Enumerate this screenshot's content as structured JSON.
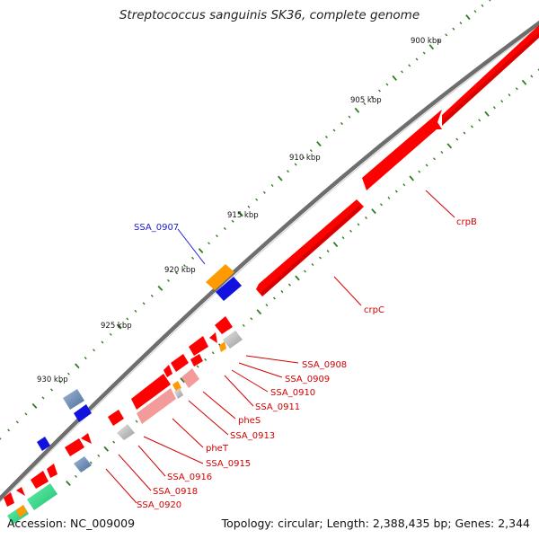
{
  "map_title": "Streptococcus sanguinis SK36, complete genome",
  "accession": "Accession: NC_009009",
  "summary": "Topology: circular; Length: 2,388,435 bp; Genes: 2,344",
  "colors": {
    "backbone": "#6e6e6e",
    "gene": "#ff0000",
    "gene_light": "#f39a9a",
    "tick": "#2e7d1e",
    "label_red": "#d40000",
    "label_blue": "#1a1ad4",
    "orange": "#ff9a00",
    "blue": "#1212e0",
    "steel": "#6f8fb5",
    "grey": "#bdbdbd",
    "green": "#33dd88"
  },
  "scale_labels": [
    "900 kbp",
    "905 kbp",
    "910 kbp",
    "915 kbp",
    "920 kbp",
    "925 kbp",
    "930 kbp"
  ],
  "gene_labels": {
    "crpB": "crpB",
    "crpC": "crpC",
    "SSA_0907": "SSA_0907",
    "SSA_0908": "SSA_0908",
    "SSA_0909": "SSA_0909",
    "SSA_0910": "SSA_0910",
    "SSA_0911": "SSA_0911",
    "pheS": "pheS",
    "SSA_0913": "SSA_0913",
    "pheT": "pheT",
    "SSA_0915": "SSA_0915",
    "SSA_0916": "SSA_0916",
    "SSA_0918": "SSA_0918",
    "SSA_0920": "SSA_0920"
  }
}
